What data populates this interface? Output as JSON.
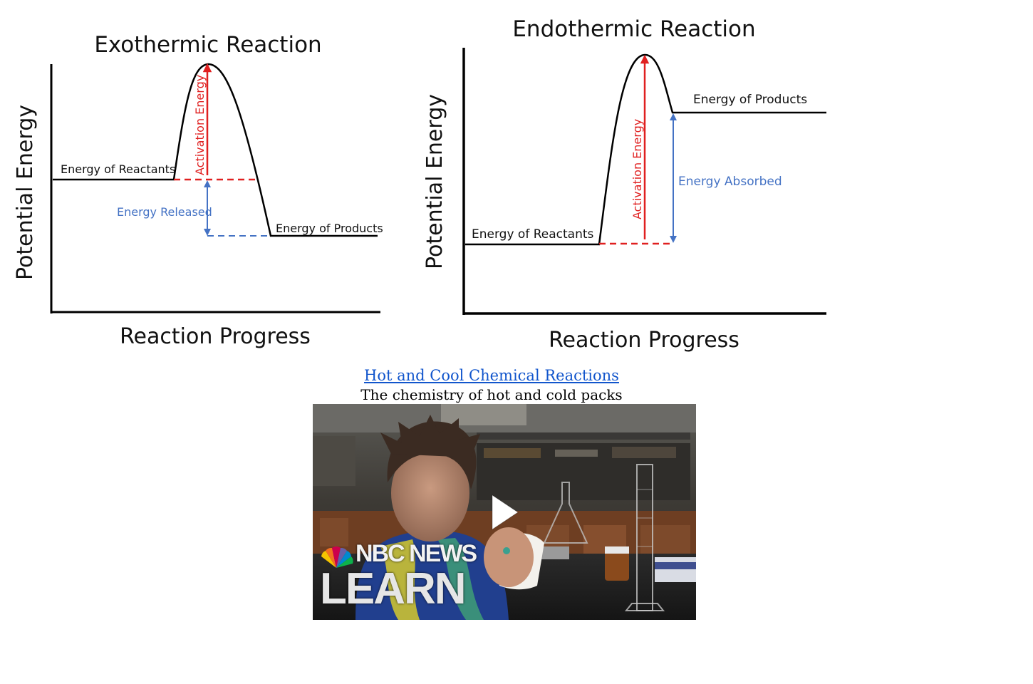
{
  "exothermic": {
    "title": "Exothermic Reaction",
    "y_axis_label": "Potential Energy",
    "x_axis_label": "Reaction Progress",
    "reactants_label": "Energy of Reactants",
    "products_label": "Energy of Products",
    "activation_label": "Activation Energy",
    "released_label": "Energy Released"
  },
  "endothermic": {
    "title": "Endothermic Reaction",
    "y_axis_label": "Potential Energy",
    "x_axis_label": "Reaction Progress",
    "reactants_label": "Energy of Reactants",
    "products_label": "Energy of Products",
    "activation_label": "Activation Energy",
    "absorbed_label": "Energy Absorbed"
  },
  "video": {
    "link_text": "Hot and Cool Chemical Reactions",
    "subtitle": "The chemistry of hot and cold packs",
    "brand_top": "NBC NEWS",
    "brand_bottom": "LEARN",
    "play_icon": "play-icon"
  },
  "colors": {
    "curve": "#000000",
    "activation": "#e02020",
    "energy_change": "#4472c4",
    "link": "#1155cc"
  }
}
